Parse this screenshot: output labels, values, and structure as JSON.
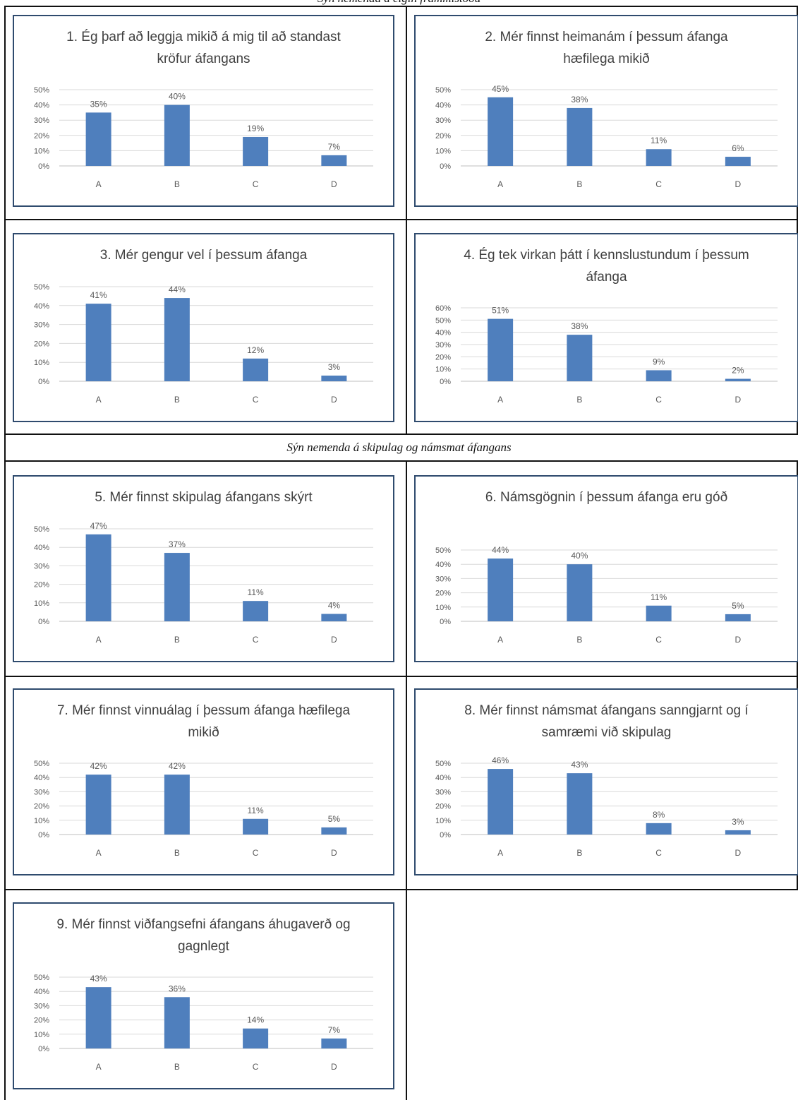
{
  "header": {
    "section_top": "Sýn nemenda á eigin frammistöðu",
    "section_middle": "Sýn nemenda á skipulag og námsmat áfangans"
  },
  "colors": {
    "bar": "#4f7fbd",
    "frame": "#2f4b6e",
    "gridline": "#d9d9d9"
  },
  "chart_data": [
    {
      "type": "bar",
      "title": "1. Ég þarf að leggja mikið á mig til að standast kröfur áfangans",
      "categories": [
        "A",
        "B",
        "C",
        "D"
      ],
      "values": [
        35,
        40,
        19,
        7
      ],
      "labels": [
        "35%",
        "40%",
        "19%",
        "7%"
      ],
      "ylim": [
        0,
        50
      ],
      "yticks": [
        "0%",
        "10%",
        "20%",
        "30%",
        "40%",
        "50%"
      ]
    },
    {
      "type": "bar",
      "title": "2. Mér finnst heimanám í þessum áfanga hæfilega mikið",
      "categories": [
        "A",
        "B",
        "C",
        "D"
      ],
      "values": [
        45,
        38,
        11,
        6
      ],
      "labels": [
        "45%",
        "38%",
        "11%",
        "6%"
      ],
      "ylim": [
        0,
        50
      ],
      "yticks": [
        "0%",
        "10%",
        "20%",
        "30%",
        "40%",
        "50%"
      ]
    },
    {
      "type": "bar",
      "title": "3. Mér gengur vel í þessum áfanga",
      "categories": [
        "A",
        "B",
        "C",
        "D"
      ],
      "values": [
        41,
        44,
        12,
        3
      ],
      "labels": [
        "41%",
        "44%",
        "12%",
        "3%"
      ],
      "ylim": [
        0,
        50
      ],
      "yticks": [
        "0%",
        "10%",
        "20%",
        "30%",
        "40%",
        "50%"
      ]
    },
    {
      "type": "bar",
      "title": "4. Ég tek virkan þátt í kennslustundum í þessum áfanga",
      "categories": [
        "A",
        "B",
        "C",
        "D"
      ],
      "values": [
        51,
        38,
        9,
        2
      ],
      "labels": [
        "51%",
        "38%",
        "9%",
        "2%"
      ],
      "ylim": [
        0,
        60
      ],
      "yticks": [
        "0%",
        "10%",
        "20%",
        "30%",
        "40%",
        "50%",
        "60%"
      ]
    },
    {
      "type": "bar",
      "title": "5. Mér finnst skipulag áfangans skýrt",
      "categories": [
        "A",
        "B",
        "C",
        "D"
      ],
      "values": [
        47,
        37,
        11,
        4
      ],
      "labels": [
        "47%",
        "37%",
        "11%",
        "4%"
      ],
      "ylim": [
        0,
        50
      ],
      "yticks": [
        "0%",
        "10%",
        "20%",
        "30%",
        "40%",
        "50%"
      ]
    },
    {
      "type": "bar",
      "title": "6. Námsgögnin í þessum áfanga eru góð",
      "categories": [
        "A",
        "B",
        "C",
        "D"
      ],
      "values": [
        44,
        40,
        11,
        5
      ],
      "labels": [
        "44%",
        "40%",
        "11%",
        "5%"
      ],
      "ylim": [
        0,
        50
      ],
      "yticks": [
        "0%",
        "10%",
        "20%",
        "30%",
        "40%",
        "50%"
      ]
    },
    {
      "type": "bar",
      "title": "7. Mér finnst vinnuálag í þessum áfanga hæfilega mikið",
      "categories": [
        "A",
        "B",
        "C",
        "D"
      ],
      "values": [
        42,
        42,
        11,
        5
      ],
      "labels": [
        "42%",
        "42%",
        "11%",
        "5%"
      ],
      "ylim": [
        0,
        50
      ],
      "yticks": [
        "0%",
        "10%",
        "20%",
        "30%",
        "40%",
        "50%"
      ]
    },
    {
      "type": "bar",
      "title": "8. Mér finnst námsmat áfangans sanngjarnt og í samræmi við skipulag",
      "categories": [
        "A",
        "B",
        "C",
        "D"
      ],
      "values": [
        46,
        43,
        8,
        3
      ],
      "labels": [
        "46%",
        "43%",
        "8%",
        "3%"
      ],
      "ylim": [
        0,
        50
      ],
      "yticks": [
        "0%",
        "10%",
        "20%",
        "30%",
        "40%",
        "50%"
      ]
    },
    {
      "type": "bar",
      "title": "9. Mér finnst viðfangsefni áfangans áhugaverð og gagnlegt",
      "categories": [
        "A",
        "B",
        "C",
        "D"
      ],
      "values": [
        43,
        36,
        14,
        7
      ],
      "labels": [
        "43%",
        "36%",
        "14%",
        "7%"
      ],
      "ylim": [
        0,
        50
      ],
      "yticks": [
        "0%",
        "10%",
        "20%",
        "30%",
        "40%",
        "50%"
      ]
    }
  ]
}
